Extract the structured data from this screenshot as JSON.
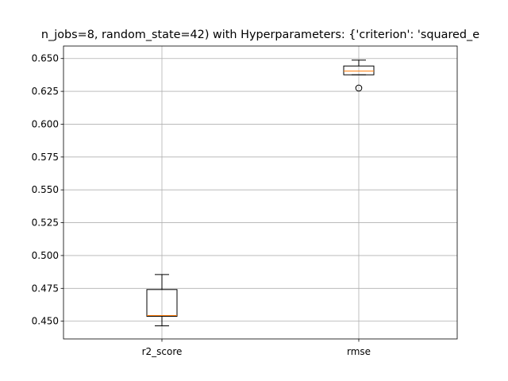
{
  "chart_data": {
    "type": "box",
    "title": "n_jobs=8, random_state=42) with Hyperparameters: {'criterion': 'squared_e",
    "xlabel": "",
    "ylabel": "",
    "categories": [
      "r2_score",
      "rmse"
    ],
    "ylim": [
      0.4365,
      0.6595
    ],
    "yticks": [
      0.45,
      0.475,
      0.5,
      0.525,
      0.55,
      0.575,
      0.6,
      0.625,
      0.65
    ],
    "ytick_labels": [
      "0.450",
      "0.475",
      "0.500",
      "0.525",
      "0.550",
      "0.575",
      "0.600",
      "0.625",
      "0.650"
    ],
    "grid": true,
    "boxes": [
      {
        "category": "r2_score",
        "whisker_low": 0.4465,
        "q1": 0.4537,
        "median": 0.4543,
        "q3": 0.4741,
        "whisker_high": 0.4855,
        "outliers": []
      },
      {
        "category": "rmse",
        "whisker_low": 0.6376,
        "q1": 0.6376,
        "median": 0.6405,
        "q3": 0.6443,
        "whisker_high": 0.6488,
        "outliers": [
          0.6275
        ]
      }
    ],
    "colors": {
      "box": "#000000",
      "median": "#ff7f0e",
      "grid": "#b0b0b0"
    }
  }
}
